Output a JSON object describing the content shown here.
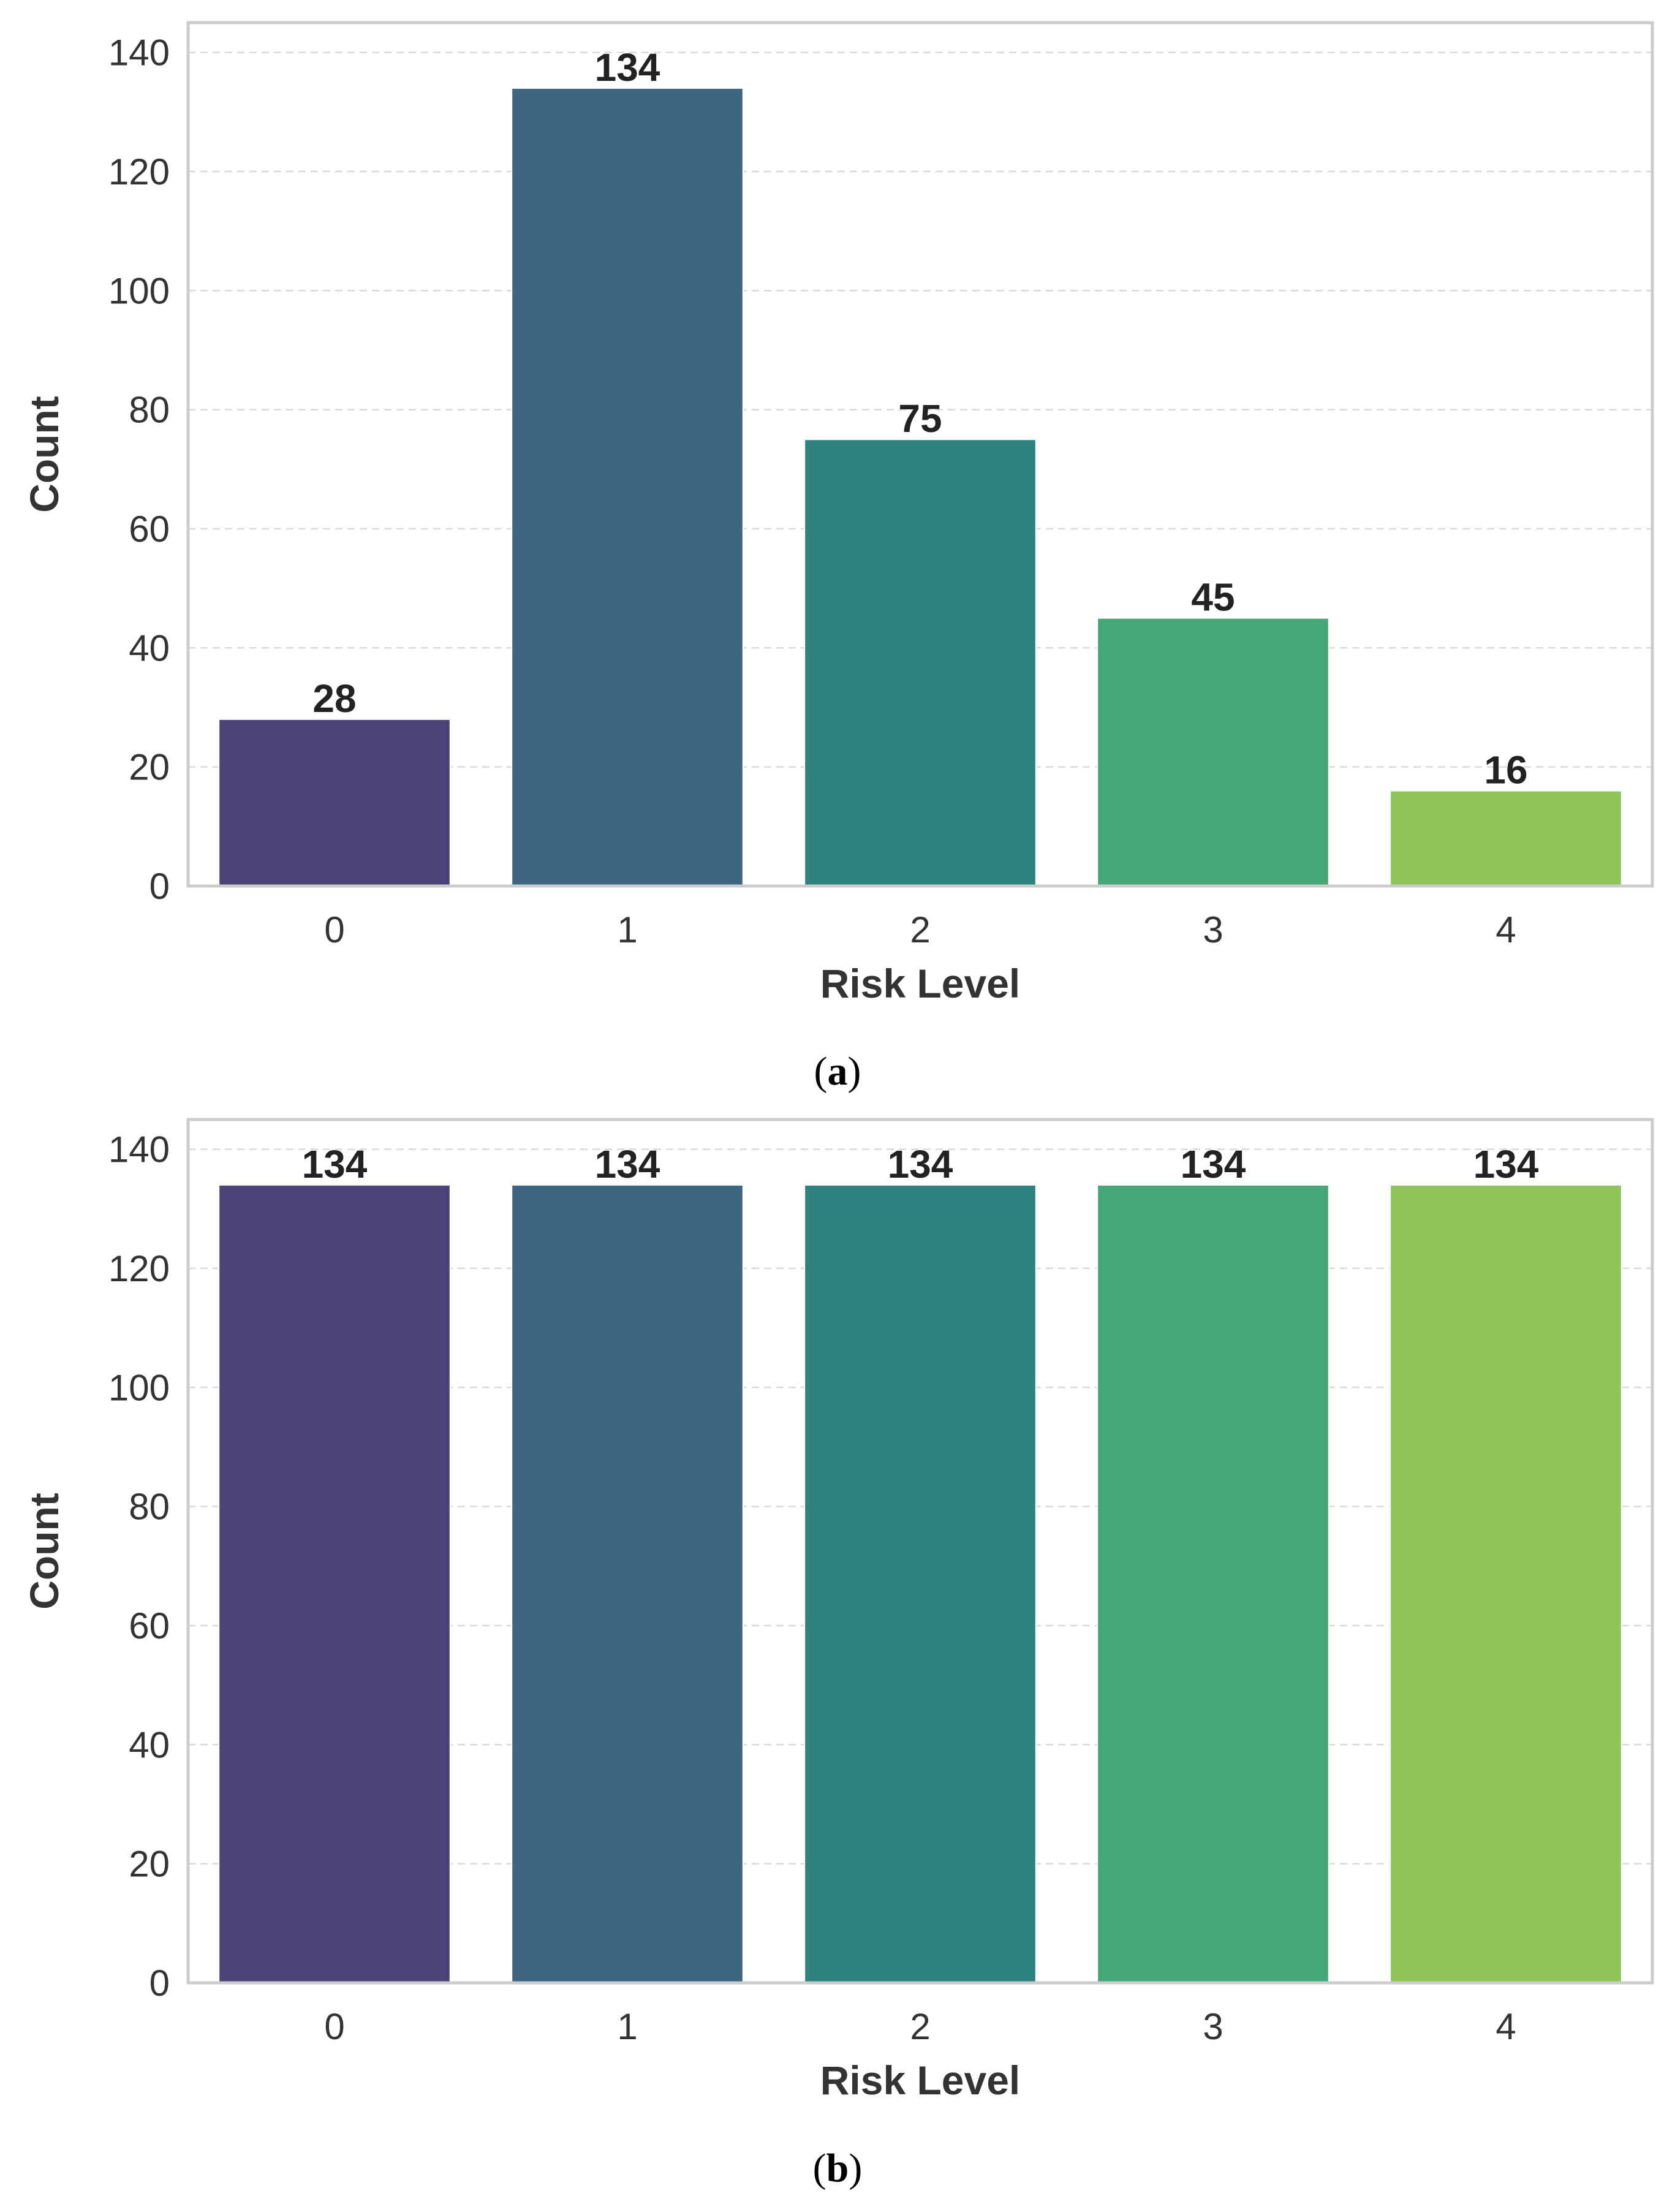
{
  "chart_data": [
    {
      "type": "bar",
      "caption_letter": "a",
      "categories": [
        "0",
        "1",
        "2",
        "3",
        "4"
      ],
      "values": [
        28,
        134,
        75,
        45,
        16
      ],
      "colors": [
        "#4b4277",
        "#3e6681",
        "#2e8380",
        "#46a877",
        "#8fc458"
      ],
      "xlabel": "Risk Level",
      "ylabel": "Count",
      "ylim": [
        0,
        145
      ],
      "yticks": [
        0,
        20,
        40,
        60,
        80,
        100,
        120,
        140
      ],
      "grid": true
    },
    {
      "type": "bar",
      "caption_letter": "b",
      "categories": [
        "0",
        "1",
        "2",
        "3",
        "4"
      ],
      "values": [
        134,
        134,
        134,
        134,
        134
      ],
      "colors": [
        "#4b4277",
        "#3e6681",
        "#2e8380",
        "#46a877",
        "#8fc458"
      ],
      "xlabel": "Risk Level",
      "ylabel": "Count",
      "ylim": [
        0,
        145
      ],
      "yticks": [
        0,
        20,
        40,
        60,
        80,
        100,
        120,
        140
      ],
      "grid": true
    }
  ],
  "style": {
    "frame_color": "#cccccc",
    "grid_color": "#d9d9d9"
  }
}
